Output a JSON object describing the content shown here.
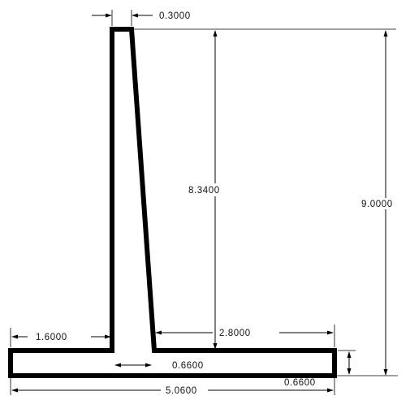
{
  "dimensions": {
    "stem_top_width": "0.3000",
    "stem_height": "8.3400",
    "total_height": "9.0000",
    "toe_length": "1.6000",
    "heel_length": "2.8000",
    "stem_base_width": "0.6600",
    "footing_thickness": "0.6600",
    "footing_width": "5.0600"
  },
  "colors": {
    "outline": "#000000",
    "background": "#ffffff"
  }
}
